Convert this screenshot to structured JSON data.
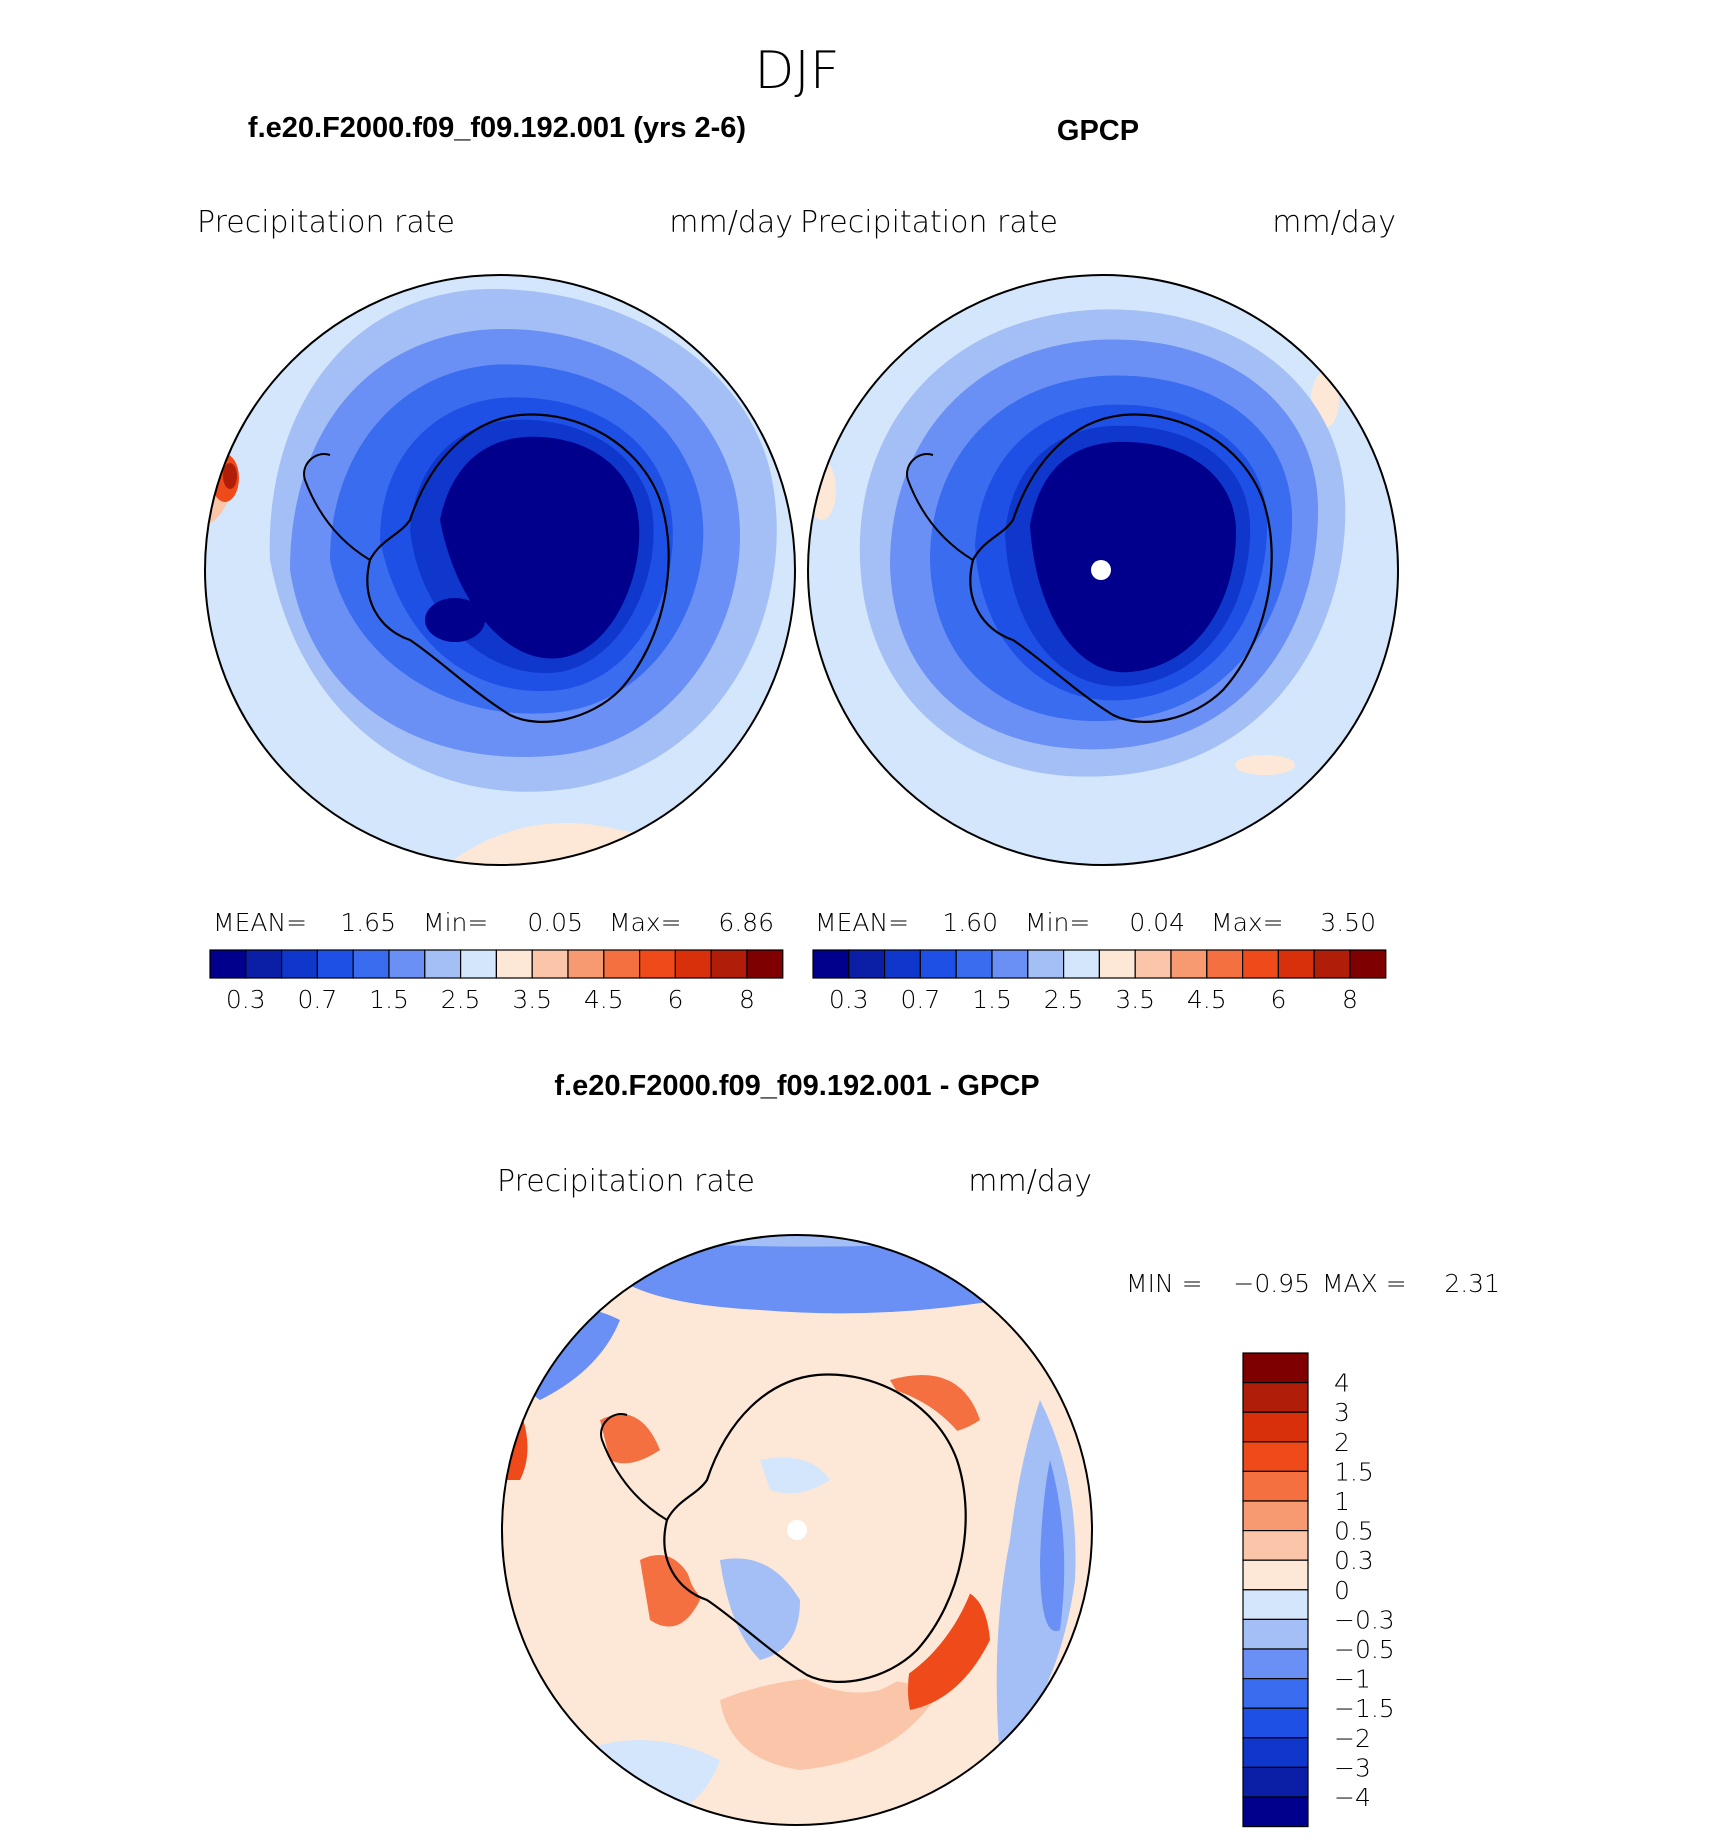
{
  "season": "DJF",
  "palette": {
    "blues": [
      "#00008c",
      "#0a1fa6",
      "#0f37cc",
      "#1f50e6",
      "#3a6cf0",
      "#6b90f5",
      "#a3bff5",
      "#d4e6fb"
    ],
    "reds": [
      "#fde8d8",
      "#fac5a8",
      "#f79a72",
      "#f47040",
      "#ee4a1a",
      "#d8300a",
      "#b01e0a",
      "#7f0000"
    ],
    "line": "#000000",
    "background": "#ffffff"
  },
  "panels": [
    {
      "title": "f.e20.F2000.f09_f09.192.001 (yrs 2-6)",
      "variable": "Precipitation  rate",
      "units": "mm/day",
      "stats": {
        "mean_label": "MEAN=",
        "mean": "1.65",
        "min_label": "Min=",
        "min": "0.05",
        "max_label": "Max=",
        "max": "6.86"
      },
      "colorbar_ticks": [
        "0.3",
        "0.7",
        "1.5",
        "2.5",
        "3.5",
        "4.5",
        "6",
        "8"
      ]
    },
    {
      "title": "GPCP",
      "variable": "Precipitation  rate",
      "units": "mm/day",
      "stats": {
        "mean_label": "MEAN=",
        "mean": "1.60",
        "min_label": "Min=",
        "min": "0.04",
        "max_label": "Max=",
        "max": "3.50"
      },
      "colorbar_ticks": [
        "0.3",
        "0.7",
        "1.5",
        "2.5",
        "3.5",
        "4.5",
        "6",
        "8"
      ]
    }
  ],
  "difference": {
    "title": "f.e20.F2000.f09_f09.192.001 - GPCP",
    "variable": "Precipitation  rate",
    "units": "mm/day",
    "stats": {
      "min_label": "MIN =",
      "min": "−0.95",
      "max_label": "MAX =",
      "max": "2.31"
    },
    "colorbar_ticks": [
      "4",
      "3",
      "2",
      "1.5",
      "1",
      "0.5",
      "0.3",
      "0",
      "−0.3",
      "−0.5",
      "−1",
      "−1.5",
      "−2",
      "−3",
      "−4"
    ],
    "colorbar_colors": [
      "#7f0000",
      "#b01e0a",
      "#d8300a",
      "#ee4a1a",
      "#f47040",
      "#f79a72",
      "#fac5a8",
      "#fde8d8",
      "#d4e6fb",
      "#a3bff5",
      "#6b90f5",
      "#3a6cf0",
      "#1f50e6",
      "#0f37cc",
      "#0a1fa6",
      "#00008c"
    ]
  },
  "chart_data": [
    {
      "type": "heatmap",
      "title": "f.e20.F2000.f09_f09.192.001 (yrs 2-6)",
      "variable": "Precipitation  rate",
      "units": "mm/day",
      "projection": "south polar stereographic",
      "mean": 1.65,
      "min": 0.05,
      "max": 6.86,
      "contour_levels": [
        0.2,
        0.3,
        0.5,
        0.7,
        1,
        1.5,
        2,
        2.5,
        3,
        3.5,
        4,
        4.5,
        5,
        6,
        7,
        8
      ]
    },
    {
      "type": "heatmap",
      "title": "GPCP",
      "variable": "Precipitation  rate",
      "units": "mm/day",
      "projection": "south polar stereographic",
      "mean": 1.6,
      "min": 0.04,
      "max": 3.5,
      "contour_levels": [
        0.2,
        0.3,
        0.5,
        0.7,
        1,
        1.5,
        2,
        2.5,
        3,
        3.5,
        4,
        4.5,
        5,
        6,
        7,
        8
      ]
    },
    {
      "type": "heatmap",
      "title": "f.e20.F2000.f09_f09.192.001 - GPCP",
      "variable": "Precipitation  rate",
      "units": "mm/day",
      "projection": "south polar stereographic",
      "min": -0.95,
      "max": 2.31,
      "contour_levels": [
        -4,
        -3,
        -2,
        -1.5,
        -1,
        -0.5,
        -0.3,
        0,
        0.3,
        0.5,
        1,
        1.5,
        2,
        3,
        4
      ]
    }
  ]
}
